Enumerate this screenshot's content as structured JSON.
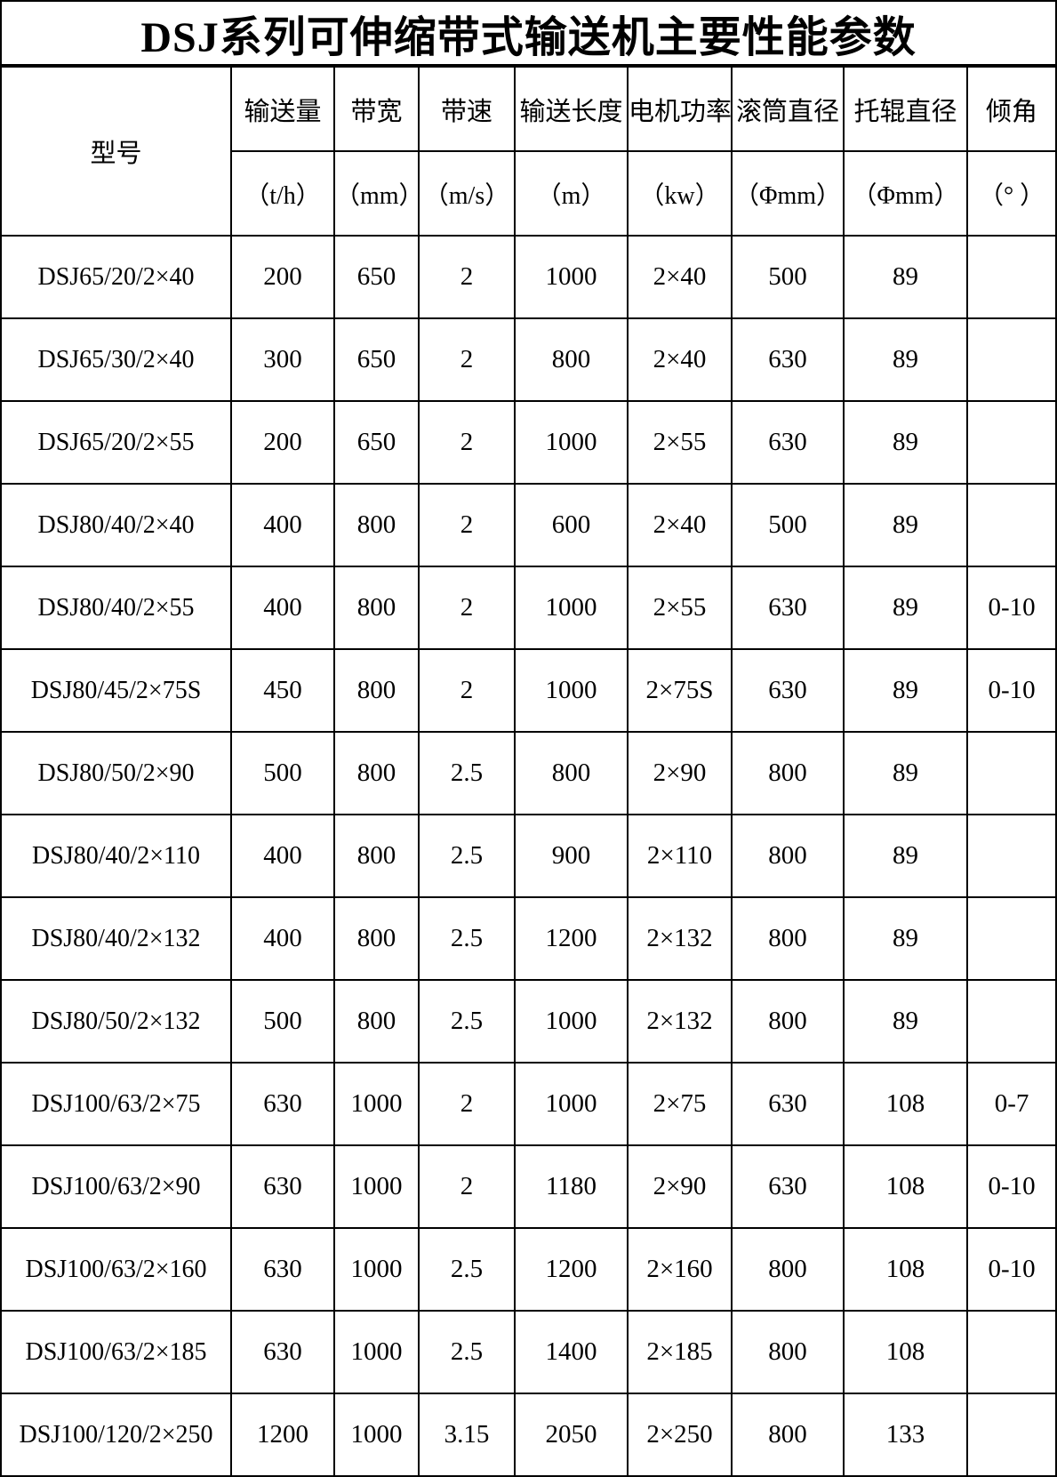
{
  "title": "DSJ系列可伸缩带式输送机主要性能参数",
  "table": {
    "model_header": "型号",
    "columns": [
      {
        "name": "输送量",
        "unit": "（t/h）"
      },
      {
        "name": "带宽",
        "unit": "（mm）"
      },
      {
        "name": "带速",
        "unit": "（m/s）"
      },
      {
        "name": "输送长度",
        "unit": "（m）"
      },
      {
        "name": "电机功率",
        "unit": "（kw）"
      },
      {
        "name": "滚筒直径",
        "unit": "（Φmm）"
      },
      {
        "name": "托辊直径",
        "unit": "（Φmm）"
      },
      {
        "name": "倾角",
        "unit": "（° ）"
      }
    ],
    "rows": [
      [
        "DSJ65/20/2×40",
        "200",
        "650",
        "2",
        "1000",
        "2×40",
        "500",
        "89",
        ""
      ],
      [
        "DSJ65/30/2×40",
        "300",
        "650",
        "2",
        "800",
        "2×40",
        "630",
        "89",
        ""
      ],
      [
        "DSJ65/20/2×55",
        "200",
        "650",
        "2",
        "1000",
        "2×55",
        "630",
        "89",
        ""
      ],
      [
        "DSJ80/40/2×40",
        "400",
        "800",
        "2",
        "600",
        "2×40",
        "500",
        "89",
        ""
      ],
      [
        "DSJ80/40/2×55",
        "400",
        "800",
        "2",
        "1000",
        "2×55",
        "630",
        "89",
        "0-10"
      ],
      [
        "DSJ80/45/2×75S",
        "450",
        "800",
        "2",
        "1000",
        "2×75S",
        "630",
        "89",
        "0-10"
      ],
      [
        "DSJ80/50/2×90",
        "500",
        "800",
        "2.5",
        "800",
        "2×90",
        "800",
        "89",
        ""
      ],
      [
        "DSJ80/40/2×110",
        "400",
        "800",
        "2.5",
        "900",
        "2×110",
        "800",
        "89",
        ""
      ],
      [
        "DSJ80/40/2×132",
        "400",
        "800",
        "2.5",
        "1200",
        "2×132",
        "800",
        "89",
        ""
      ],
      [
        "DSJ80/50/2×132",
        "500",
        "800",
        "2.5",
        "1000",
        "2×132",
        "800",
        "89",
        ""
      ],
      [
        "DSJ100/63/2×75",
        "630",
        "1000",
        "2",
        "1000",
        "2×75",
        "630",
        "108",
        "0-7"
      ],
      [
        "DSJ100/63/2×90",
        "630",
        "1000",
        "2",
        "1180",
        "2×90",
        "630",
        "108",
        "0-10"
      ],
      [
        "DSJ100/63/2×160",
        "630",
        "1000",
        "2.5",
        "1200",
        "2×160",
        "800",
        "108",
        "0-10"
      ],
      [
        "DSJ100/63/2×185",
        "630",
        "1000",
        "2.5",
        "1400",
        "2×185",
        "800",
        "108",
        ""
      ],
      [
        "DSJ100/120/2×250",
        "1200",
        "1000",
        "3.15",
        "2050",
        "2×250",
        "800",
        "133",
        ""
      ]
    ]
  }
}
